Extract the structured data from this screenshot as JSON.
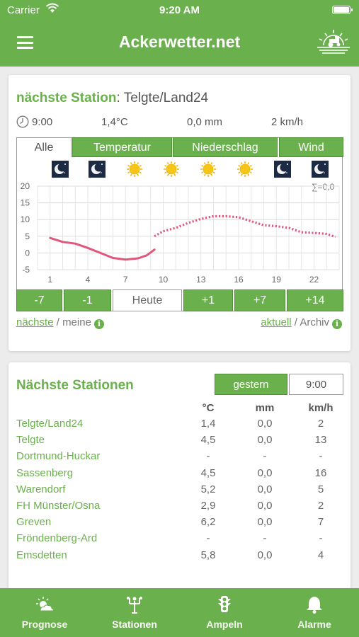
{
  "status_bar": {
    "carrier": "Carrier",
    "time": "9:20 AM"
  },
  "header": {
    "title": "Ackerwetter.net"
  },
  "station": {
    "label": "nächste Station",
    "separator": ": ",
    "name": "Telgte/Land24",
    "current_time": "9:00",
    "current_temp": "1,4°C",
    "current_precip": "0,0 mm",
    "current_wind": "2 km/h"
  },
  "chart_tabs": [
    {
      "label": "Alle",
      "active": true
    },
    {
      "label": "Temperatur",
      "active": false
    },
    {
      "label": "Niederschlag",
      "active": false
    },
    {
      "label": "Wind",
      "active": false
    }
  ],
  "weather_icons": [
    "moon-icon",
    "moon-icon",
    "sun-icon",
    "sun-icon",
    "sun-icon",
    "sun-icon",
    "moon-icon",
    "moon-icon"
  ],
  "chart_data": {
    "type": "line",
    "ylim": [
      -5,
      20
    ],
    "yticks": [
      "20",
      "15",
      "10",
      "5",
      "0",
      "-5"
    ],
    "xlim": [
      0,
      24
    ],
    "xticks": [
      "1",
      "4",
      "7",
      "10",
      "13",
      "16",
      "19",
      "22"
    ],
    "annotation": "∑=0,0",
    "series": [
      {
        "style": "solid",
        "color": "#e0567c",
        "points": [
          [
            1,
            4.5
          ],
          [
            2,
            3.3
          ],
          [
            3,
            2.8
          ],
          [
            4,
            1.5
          ],
          [
            5,
            0
          ],
          [
            6,
            -1.5
          ],
          [
            7,
            -2
          ],
          [
            8,
            -1.6
          ],
          [
            8.7,
            -0.7
          ],
          [
            9.3,
            1
          ]
        ]
      },
      {
        "style": "dotted",
        "color": "#e0567c",
        "points": [
          [
            9.3,
            5
          ],
          [
            10,
            6.5
          ],
          [
            11,
            7.5
          ],
          [
            12,
            9
          ],
          [
            13,
            10.2
          ],
          [
            14,
            11
          ],
          [
            15,
            11
          ],
          [
            16,
            10.7
          ],
          [
            17,
            9.5
          ],
          [
            18,
            8.3
          ],
          [
            19,
            8
          ],
          [
            20,
            7.5
          ],
          [
            21,
            6.2
          ],
          [
            22,
            6
          ],
          [
            23,
            5.7
          ],
          [
            23.7,
            4.8
          ]
        ]
      }
    ]
  },
  "day_nav": [
    {
      "label": "-7",
      "active": false
    },
    {
      "label": "-1",
      "active": false
    },
    {
      "label": "Heute",
      "active": true
    },
    {
      "label": "+1",
      "active": false
    },
    {
      "label": "+7",
      "active": false
    },
    {
      "label": "+14",
      "active": false
    }
  ],
  "links_left": {
    "first": "nächste",
    "sep": " / ",
    "second": "meine"
  },
  "links_right": {
    "first": "aktuell",
    "sep": " / ",
    "second": "Archiv"
  },
  "info_glyph": "i",
  "nearby": {
    "title": "Nächste Stationen",
    "toggle": [
      {
        "label": "gestern",
        "active": false
      },
      {
        "label": "9:00",
        "active": true
      }
    ],
    "columns": [
      "°C",
      "mm",
      "km/h"
    ],
    "rows": [
      {
        "name": "Telgte/Land24",
        "temp": "1,4",
        "mm": "0,0",
        "wind": "2"
      },
      {
        "name": "Telgte",
        "temp": "4,5",
        "mm": "0,0",
        "wind": "13"
      },
      {
        "name": "Dortmund-Huckar",
        "temp": "-",
        "mm": "-",
        "wind": "-"
      },
      {
        "name": "Sassenberg",
        "temp": "4,5",
        "mm": "0,0",
        "wind": "16"
      },
      {
        "name": "Warendorf",
        "temp": "5,2",
        "mm": "0,0",
        "wind": "5"
      },
      {
        "name": "FH Münster/Osna",
        "temp": "2,9",
        "mm": "0,0",
        "wind": "2"
      },
      {
        "name": "Greven",
        "temp": "6,2",
        "mm": "0,0",
        "wind": "7"
      },
      {
        "name": "Fröndenberg-Ard",
        "temp": "-",
        "mm": "-",
        "wind": "-"
      },
      {
        "name": "Emsdetten",
        "temp": "5,8",
        "mm": "0,0",
        "wind": "4"
      }
    ]
  },
  "tabbar": [
    {
      "label": "Prognose",
      "icon": "cloud-sun-icon",
      "selected": false
    },
    {
      "label": "Stationen",
      "icon": "station-icon",
      "selected": true
    },
    {
      "label": "Ampeln",
      "icon": "traffic-light-icon",
      "selected": false
    },
    {
      "label": "Alarme",
      "icon": "bell-icon",
      "selected": false
    }
  ],
  "colors": {
    "brand": "#6ab04c",
    "curve": "#e0567c",
    "moon_bg": "#1d2a44",
    "sun": "#f5c518"
  }
}
